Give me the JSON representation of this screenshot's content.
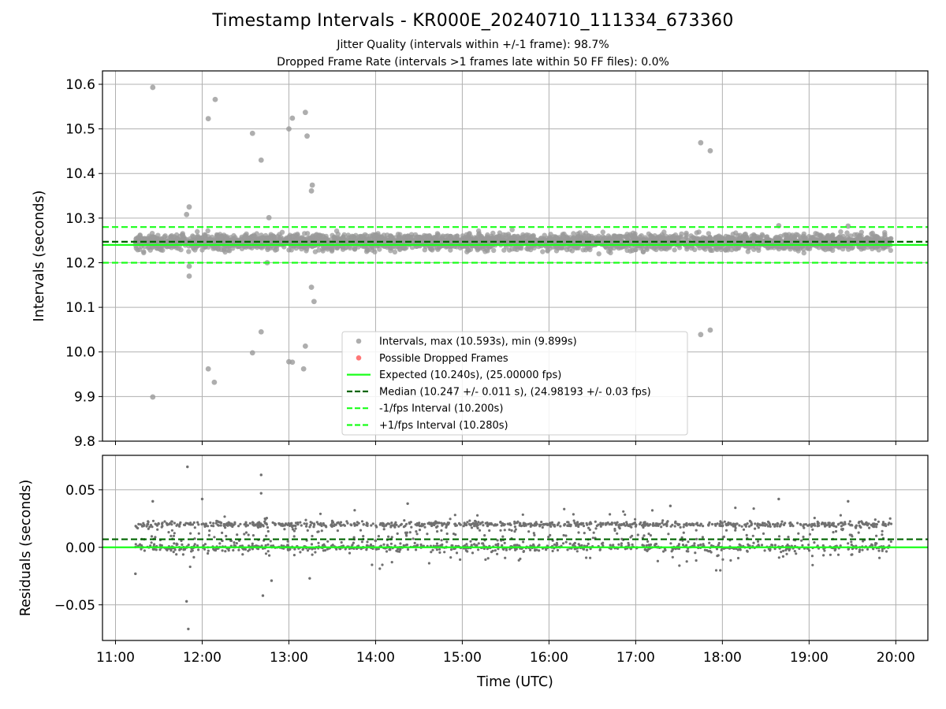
{
  "figure": {
    "title": "Timestamp Intervals - KR000E_20240710_111334_673360",
    "subtitle_jitter": "Jitter Quality (intervals within +/-1 frame): 98.7%",
    "subtitle_dropped": "Dropped Frame Rate (intervals >1 frames late within 50 FF files): 0.0%"
  },
  "chart_data": [
    {
      "type": "scatter",
      "panel": "intervals",
      "ylabel": "Intervals (seconds)",
      "xlabel": "",
      "x_unit": "hours UTC",
      "xlim": [
        10.85,
        20.37
      ],
      "ylim": [
        9.8,
        10.63
      ],
      "yticks": [
        9.8,
        9.9,
        10.0,
        10.1,
        10.2,
        10.3,
        10.4,
        10.5,
        10.6
      ],
      "ytick_labels": [
        "9.8",
        "9.9",
        "10.0",
        "10.1",
        "10.2",
        "10.3",
        "10.4",
        "10.5",
        "10.6"
      ],
      "xticks": [
        11,
        12,
        13,
        14,
        15,
        16,
        17,
        18,
        19,
        20
      ],
      "grid": true,
      "legend_position": "lower center",
      "series": [
        {
          "name": "Intervals, max (10.593s), min (9.899s)",
          "kind": "scatter",
          "color": "#9a9a9a",
          "x_range": [
            11.23,
            19.95
          ],
          "typical_range": [
            10.22,
            10.275
          ],
          "count": 3000,
          "outliers": [
            [
              11.43,
              10.593
            ],
            [
              11.43,
              9.899
            ],
            [
              11.85,
              10.325
            ],
            [
              11.82,
              10.308
            ],
            [
              11.85,
              10.192
            ],
            [
              11.85,
              10.17
            ],
            [
              12.07,
              10.523
            ],
            [
              12.15,
              10.566
            ],
            [
              12.07,
              9.962
            ],
            [
              12.14,
              9.932
            ],
            [
              12.58,
              10.49
            ],
            [
              12.68,
              10.43
            ],
            [
              12.68,
              10.045
            ],
            [
              12.58,
              9.998
            ],
            [
              12.77,
              10.301
            ],
            [
              12.75,
              10.2
            ],
            [
              13.0,
              10.5
            ],
            [
              13.04,
              10.524
            ],
            [
              13.19,
              10.537
            ],
            [
              13.21,
              10.484
            ],
            [
              13.27,
              10.374
            ],
            [
              13.26,
              10.361
            ],
            [
              13.26,
              10.145
            ],
            [
              13.29,
              10.113
            ],
            [
              13.19,
              10.013
            ],
            [
              13.0,
              9.978
            ],
            [
              13.04,
              9.977
            ],
            [
              13.17,
              9.962
            ],
            [
              17.75,
              10.469
            ],
            [
              17.86,
              10.451
            ],
            [
              17.75,
              10.039
            ],
            [
              17.86,
              10.049
            ],
            [
              18.65,
              10.283
            ],
            [
              19.45,
              10.282
            ]
          ]
        },
        {
          "name": "Possible Dropped Frames",
          "kind": "scatter",
          "color": "#ff5555",
          "points": []
        },
        {
          "name": "Expected (10.240s), (25.00000 fps)",
          "kind": "hline",
          "y": 10.24,
          "color": "#1aff1a",
          "style": "solid"
        },
        {
          "name": "Median (10.247 +/- 0.011 s), (24.98193 +/- 0.03 fps)",
          "kind": "hline",
          "y": 10.247,
          "color": "#006400",
          "style": "dashed"
        },
        {
          "name": "-1/fps Interval (10.200s)",
          "kind": "hline",
          "y": 10.2,
          "color": "#1aff1a",
          "style": "dashed"
        },
        {
          "name": "+1/fps Interval (10.280s)",
          "kind": "hline",
          "y": 10.28,
          "color": "#1aff1a",
          "style": "dashed"
        }
      ]
    },
    {
      "type": "scatter",
      "panel": "residuals",
      "ylabel": "Residuals (seconds)",
      "xlabel": "Time (UTC)",
      "x_unit": "hours UTC",
      "xlim": [
        10.85,
        20.37
      ],
      "ylim": [
        -0.081,
        0.08
      ],
      "yticks": [
        -0.05,
        0.0,
        0.05
      ],
      "ytick_labels": [
        "−0.05",
        "0.00",
        "0.05"
      ],
      "xticks": [
        11,
        12,
        13,
        14,
        15,
        16,
        17,
        18,
        19,
        20
      ],
      "xtick_labels": [
        "11:00",
        "12:00",
        "13:00",
        "14:00",
        "15:00",
        "16:00",
        "17:00",
        "18:00",
        "19:00",
        "20:00"
      ],
      "grid": true,
      "series": [
        {
          "kind": "scatter",
          "color": "#707070",
          "x_range": [
            11.23,
            19.95
          ],
          "bands": [
            0.0,
            0.02
          ],
          "typical_range": [
            -0.02,
            0.04
          ],
          "count": 1800,
          "outliers": [
            [
              11.83,
              0.07
            ],
            [
              11.82,
              -0.047
            ],
            [
              11.84,
              -0.071
            ],
            [
              12.68,
              0.063
            ],
            [
              12.68,
              0.047
            ],
            [
              12.7,
              -0.042
            ],
            [
              12.8,
              -0.029
            ],
            [
              13.24,
              -0.027
            ],
            [
              11.23,
              -0.023
            ],
            [
              11.43,
              0.04
            ],
            [
              18.65,
              0.042
            ],
            [
              19.45,
              0.04
            ],
            [
              14.37,
              0.038
            ],
            [
              12.0,
              0.042
            ],
            [
              17.4,
              0.036
            ]
          ]
        },
        {
          "kind": "hline",
          "y": 0.0,
          "color": "#1aff1a",
          "style": "solid"
        },
        {
          "kind": "hline",
          "y": 0.007,
          "color": "#006400",
          "style": "dashed"
        }
      ]
    }
  ]
}
